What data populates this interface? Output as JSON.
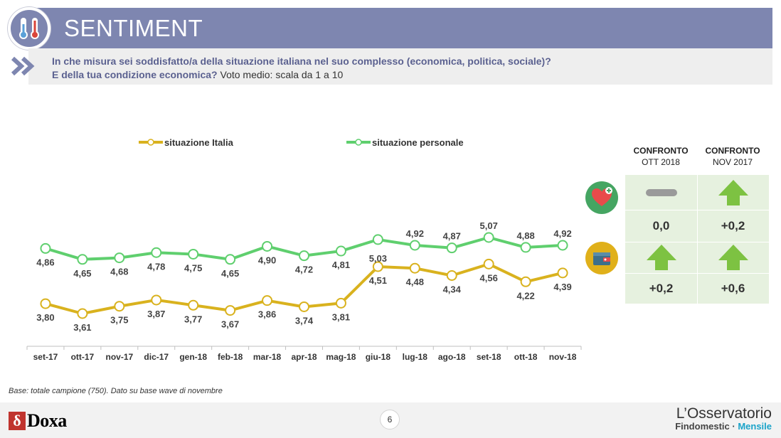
{
  "header": {
    "title": "SENTIMENT",
    "icon": "thermometer-icon",
    "question_bold_1": "In che misura sei soddisfatto/a della situazione italiana nel suo complesso (economica, politica, sociale)?",
    "question_bold_2": "E della tua condizione economica?",
    "question_normal": " Voto medio: scala da 1 a 10"
  },
  "chart_data": {
    "type": "line",
    "categories": [
      "set-17",
      "ott-17",
      "nov-17",
      "dic-17",
      "gen-18",
      "feb-18",
      "mar-18",
      "apr-18",
      "mag-18",
      "giu-18",
      "lug-18",
      "ago-18",
      "set-18",
      "ott-18",
      "nov-18"
    ],
    "series": [
      {
        "name": "situazione Italia",
        "color": "#d9b21e",
        "values": [
          3.8,
          3.61,
          3.75,
          3.87,
          3.77,
          3.67,
          3.86,
          3.74,
          3.81,
          4.51,
          4.48,
          4.34,
          4.56,
          4.22,
          4.39
        ],
        "labels": [
          "3,80",
          "3,61",
          "3,75",
          "3,87",
          "3,77",
          "3,67",
          "3,86",
          "3,74",
          "3,81",
          "4,51",
          "4,48",
          "4,34",
          "4,56",
          "4,22",
          "4,39"
        ]
      },
      {
        "name": "situazione personale",
        "color": "#5fcf6e",
        "values": [
          4.86,
          4.65,
          4.68,
          4.78,
          4.75,
          4.65,
          4.9,
          4.72,
          4.81,
          5.03,
          4.92,
          4.87,
          5.07,
          4.88,
          4.92
        ],
        "labels": [
          "4,86",
          "4,65",
          "4,68",
          "4,78",
          "4,75",
          "4,65",
          "4,90",
          "4,72",
          "4,81",
          "5,03",
          "4,92",
          "4,87",
          "5,07",
          "4,88",
          "4,92"
        ]
      }
    ],
    "legend_position": "top"
  },
  "comparison": {
    "col1_line1": "CONFRONTO",
    "col1_line2": "OTT 2018",
    "col2_line1": "CONFRONTO",
    "col2_line2": "NOV 2017",
    "row1": {
      "icon": "heart-icon",
      "col1_symbol": "dash-icon",
      "col2_symbol": "arrow-up-icon",
      "col1_value": "0,0",
      "col2_value": "+0,2"
    },
    "row2": {
      "icon": "wallet-icon",
      "col1_symbol": "arrow-up-icon",
      "col2_symbol": "arrow-up-icon",
      "col1_value": "+0,2",
      "col2_value": "+0,6"
    },
    "accent": "#7dc242"
  },
  "footnote": "Base: totale campione (750). Dato su base wave di novembre",
  "footer": {
    "brand_left": "Doxa",
    "page_number": "6",
    "brand_right_1": "L’Osservatorio",
    "brand_right_2": "Findomestic · ",
    "brand_right_3": "Mensile"
  }
}
